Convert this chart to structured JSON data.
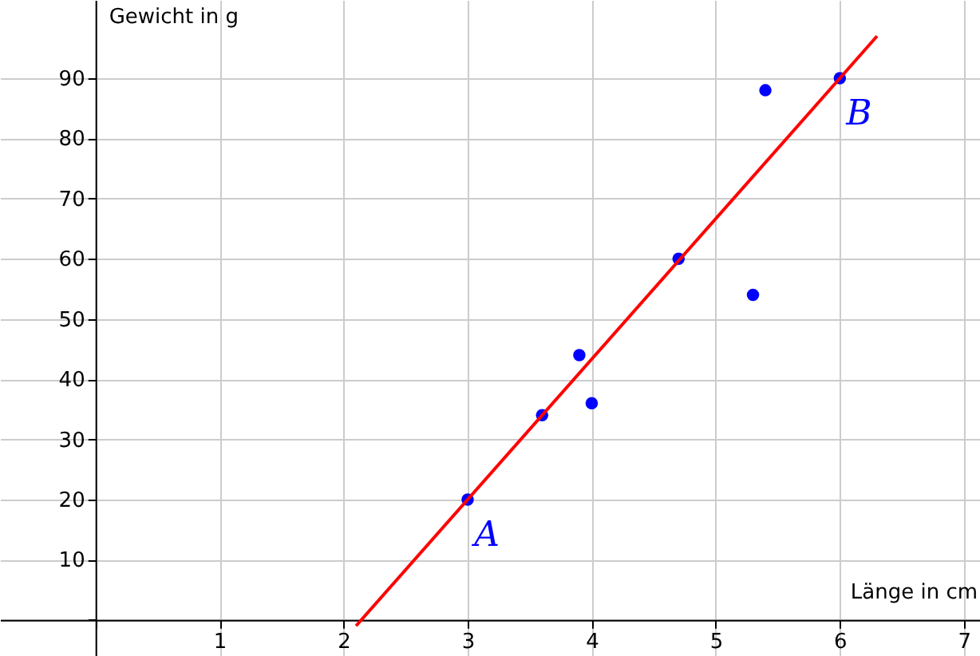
{
  "chart_data": {
    "type": "scatter",
    "xlabel": "Länge in cm",
    "ylabel": "Gewicht in g",
    "xlim": [
      -0.77,
      7.13
    ],
    "ylim": [
      -6,
      103
    ],
    "xticks": [
      {
        "value": 0,
        "label": null
      },
      1,
      2,
      3,
      4,
      5,
      6,
      7
    ],
    "yticks": [
      {
        "value": 0,
        "label": null
      },
      10,
      20,
      30,
      40,
      50,
      60,
      70,
      80,
      90
    ],
    "grid": true,
    "series": [
      {
        "marker": "circle",
        "color": "#0000ff",
        "x": [
          3,
          3.6,
          3.9,
          4,
          4.7,
          5.3,
          5.4,
          6
        ],
        "values": [
          20,
          34,
          44,
          36,
          60,
          54,
          88,
          90
        ]
      },
      {
        "type": "line",
        "color": "#ff0000",
        "x": [
          2.1,
          6.3
        ],
        "values": [
          -1,
          97
        ]
      }
    ],
    "annotations": [
      {
        "text": "A",
        "x": 3,
        "y": 20
      },
      {
        "text": "B",
        "x": 6,
        "y": 90
      }
    ]
  }
}
